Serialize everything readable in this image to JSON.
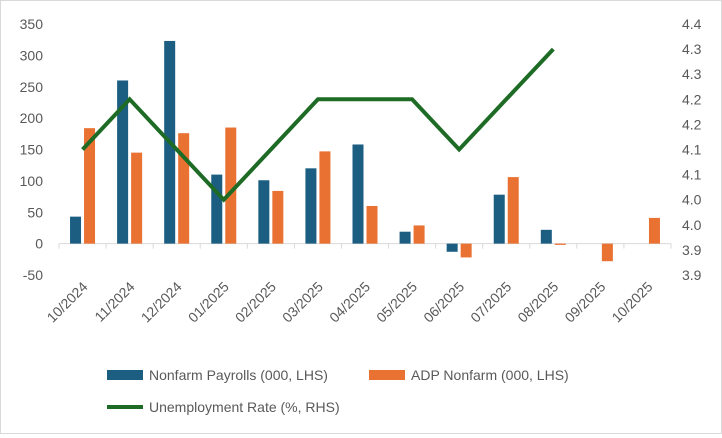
{
  "chart_data": {
    "type": "bar+line",
    "categories": [
      "10/2024",
      "11/2024",
      "12/2024",
      "01/2025",
      "02/2025",
      "03/2025",
      "04/2025",
      "05/2025",
      "06/2025",
      "07/2025",
      "08/2025",
      "09/2025",
      "10/2025"
    ],
    "series": [
      {
        "name": "Nonfarm Payrolls (000, LHS)",
        "type": "bar",
        "axis": "left",
        "color": "#1b5e82",
        "values": [
          43,
          260,
          323,
          110,
          101,
          120,
          158,
          19,
          -13,
          78,
          22,
          null,
          null
        ]
      },
      {
        "name": "ADP Nonfarm (000, LHS)",
        "type": "bar",
        "axis": "left",
        "color": "#e97132",
        "values": [
          184,
          145,
          176,
          185,
          84,
          147,
          60,
          29,
          -22,
          106,
          -2,
          -28,
          41
        ]
      },
      {
        "name": "Unemployment Rate (%, RHS)",
        "type": "line",
        "axis": "right",
        "color": "#1e6b26",
        "values": [
          4.1,
          4.2,
          4.1,
          4.0,
          4.1,
          4.2,
          4.2,
          4.2,
          4.1,
          4.2,
          4.3,
          null,
          null
        ]
      }
    ],
    "left_axis": {
      "range": [
        -50,
        350
      ],
      "ticks": [
        "350",
        "300",
        "250",
        "200",
        "150",
        "100",
        "50",
        "0",
        "-50"
      ]
    },
    "right_axis": {
      "range": [
        3.85,
        4.35
      ],
      "ticks": [
        "4.4",
        "4.3",
        "4.3",
        "4.2",
        "4.2",
        "4.1",
        "4.1",
        "4.0",
        "4.0",
        "3.9",
        "3.9"
      ]
    },
    "grid": false,
    "legend_placement": "bottom"
  }
}
